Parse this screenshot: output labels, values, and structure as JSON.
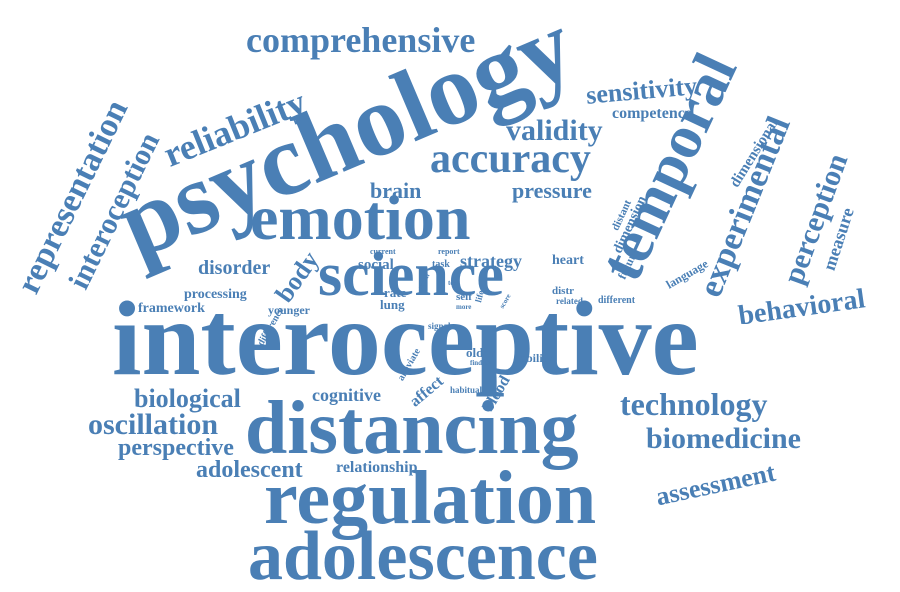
{
  "color": "#4a7fb5",
  "background": "#ffffff",
  "words": [
    "interoceptive",
    "psychology",
    "distancing",
    "regulation",
    "adolescence",
    "emotion",
    "science",
    "temporal",
    "accuracy",
    "experimental",
    "comprehensive",
    "reliability",
    "representation",
    "interoception",
    "validity",
    "sensitivity",
    "perception",
    "behavioral",
    "technology",
    "biomedicine",
    "oscillation",
    "biological",
    "perspective",
    "adolescent",
    "assessment",
    "measure",
    "dimensional",
    "competence",
    "brain",
    "pressure",
    "disorder",
    "body",
    "framework",
    "processing",
    "younger",
    "cognitive",
    "relationship",
    "social",
    "strategy",
    "heart",
    "dimension",
    "distant",
    "future",
    "language",
    "different",
    "related",
    "distr",
    "rate",
    "lung",
    "self",
    "older",
    "ability",
    "affect",
    "blood",
    "habitual",
    "alleviate",
    "signal",
    "difference",
    "current",
    "report",
    "task",
    "text",
    "life",
    "finding",
    "recall",
    "more",
    "score"
  ]
}
